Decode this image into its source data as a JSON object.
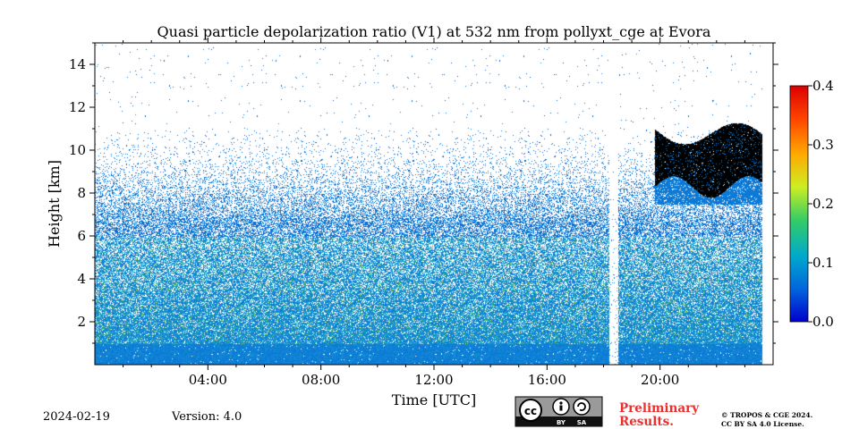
{
  "chart_data": {
    "type": "heatmap",
    "title": "Quasi particle depolarization ratio (V1) at 532 nm from pollyxt_cge at Evora",
    "xlabel": "Time [UTC]",
    "ylabel": "Height [km]",
    "x_range_hours": [
      0,
      24
    ],
    "y_range_km": [
      0,
      15
    ],
    "x_ticks": [
      "04:00",
      "08:00",
      "12:00",
      "16:00",
      "20:00"
    ],
    "x_tick_hours": [
      4,
      8,
      12,
      16,
      20
    ],
    "y_ticks": [
      "2",
      "4",
      "6",
      "8",
      "10",
      "12",
      "14"
    ],
    "y_tick_values": [
      2,
      4,
      6,
      8,
      10,
      12,
      14
    ],
    "colorbar": {
      "range": [
        0.0,
        0.4
      ],
      "ticks": [
        "0.0",
        "0.1",
        "0.2",
        "0.3",
        "0.4"
      ],
      "tick_values": [
        0.0,
        0.1,
        0.2,
        0.3,
        0.4
      ],
      "colormap": [
        "#0000cc",
        "#0066dd",
        "#00aacc",
        "#33cc66",
        "#ccee22",
        "#ffaa00",
        "#ff4400",
        "#dd0000"
      ]
    },
    "features": {
      "dense_layer_top_km": 6.5,
      "sparse_signal_top_km": 11,
      "data_gap_hours": [
        18.2,
        18.5
      ],
      "cirrus_cloud": {
        "start_hour": 19.8,
        "end_hour": 23.6,
        "base_km": 7.5,
        "top_km": 11
      }
    }
  },
  "footer": {
    "date": "2024-02-19",
    "version": "Version: 4.0",
    "preliminary": [
      "Preliminary",
      "Results."
    ],
    "copyright": [
      "© TROPOS & CGE 2024.",
      "CC BY SA 4.0 License."
    ],
    "license_badge": {
      "cc": "cc",
      "by": "BY",
      "sa": "SA"
    }
  },
  "colors": {
    "accent": "#e8312f",
    "cloud": "#000000",
    "bg": "#ffffff"
  }
}
